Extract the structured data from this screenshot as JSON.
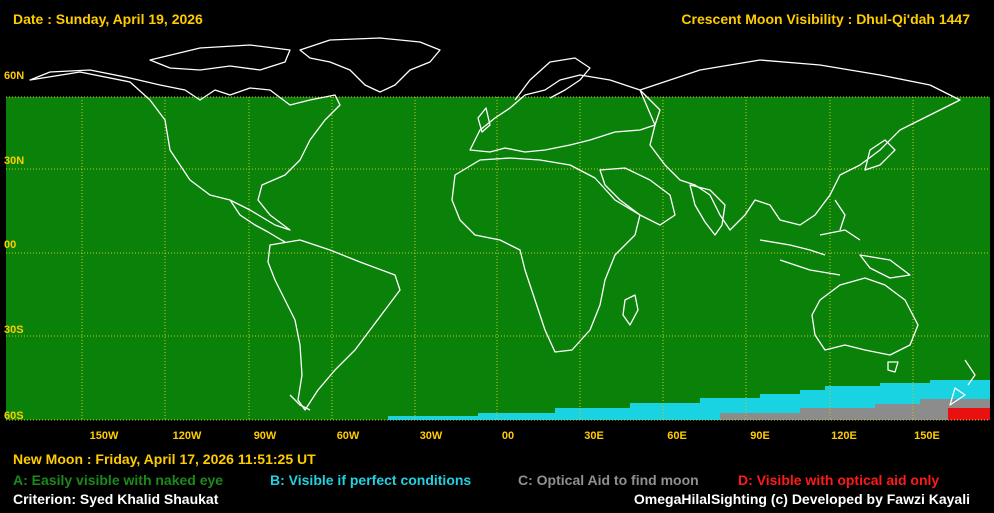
{
  "header": {
    "date": "Date : Sunday, April 19, 2026",
    "title": "Crescent Moon Visibility : Dhul-Qi'dah  1447"
  },
  "lat_labels": [
    "60N",
    "30N",
    "00",
    "30S",
    "60S"
  ],
  "lon_labels": [
    "150W",
    "120W",
    "90W",
    "60W",
    "30W",
    "00",
    "30E",
    "60E",
    "90E",
    "120E",
    "150E"
  ],
  "footer": {
    "new_moon": "New Moon : Friday, April 17, 2026  11:51:25  UT",
    "criterion": "Criterion: Syed Khalid Shaukat",
    "credit": "OmegaHilalSighting  (c)  Developed by Fawzi Kayali"
  },
  "legend": [
    {
      "code": "A",
      "label": "A: Easily visible with naked eye",
      "color": "#1a8a1a"
    },
    {
      "code": "B",
      "label": "B: Visible if perfect conditions",
      "color": "#22d0e0"
    },
    {
      "code": "C",
      "label": "C: Optical Aid to find moon",
      "color": "#909090"
    },
    {
      "code": "D",
      "label": "D: Visible with optical aid only",
      "color": "#ff1a1a"
    }
  ],
  "colors": {
    "background": "#000000",
    "zone_a": "#0a820a",
    "zone_b": "#19d3e3",
    "zone_c": "#8c8c8c",
    "zone_d": "#e81010",
    "grid": "#c8c820",
    "coast": "#ffffff",
    "label": "#ffcc00"
  }
}
